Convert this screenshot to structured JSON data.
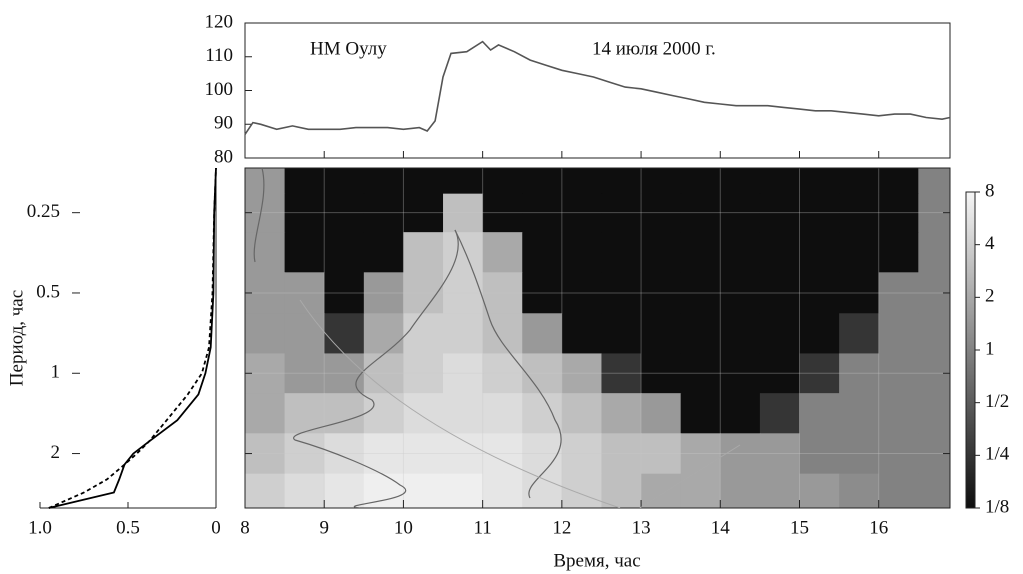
{
  "chart_data": [
    {
      "type": "line",
      "title": "НМ Оулу",
      "subtitle": "14 июля 2000 г.",
      "x": [
        8.0,
        8.1,
        8.2,
        8.4,
        8.6,
        8.8,
        9.0,
        9.2,
        9.4,
        9.6,
        9.8,
        10.0,
        10.2,
        10.3,
        10.4,
        10.5,
        10.6,
        10.8,
        11.0,
        11.1,
        11.2,
        11.4,
        11.6,
        11.8,
        12.0,
        12.2,
        12.4,
        12.6,
        12.8,
        13.0,
        13.2,
        13.4,
        13.6,
        13.8,
        14.0,
        14.2,
        14.4,
        14.6,
        14.8,
        15.0,
        15.2,
        15.4,
        15.6,
        15.8,
        16.0,
        16.2,
        16.4,
        16.6,
        16.8,
        16.9
      ],
      "series": [
        {
          "color": "#555555",
          "values": [
            87,
            90.5,
            90,
            88.5,
            89.5,
            88.5,
            88.5,
            88.5,
            89,
            89,
            89,
            88.5,
            89,
            88,
            91,
            104,
            111,
            111.5,
            114.5,
            112,
            113.5,
            111.5,
            109,
            107.5,
            106,
            105,
            104,
            102.5,
            101,
            100.5,
            99.5,
            98.5,
            97.5,
            96.5,
            96,
            95.5,
            95.5,
            95.5,
            95,
            94.5,
            94,
            94,
            93.5,
            93,
            92.5,
            93,
            93,
            92,
            91.5,
            92
          ]
        }
      ],
      "xlim": [
        8,
        16.9
      ],
      "ylim": [
        80,
        120
      ],
      "yticks": [
        80,
        90,
        100,
        110,
        120
      ]
    },
    {
      "type": "line",
      "orientation": "horizontal",
      "y_label": "Период, час",
      "y": [
        3.2,
        2.8,
        2.5,
        2.2,
        2.0,
        1.8,
        1.5,
        1.2,
        1.0,
        0.8,
        0.5,
        0.25,
        0.17
      ],
      "series": [
        {
          "color": "#000000",
          "style": "solid",
          "values": [
            0.95,
            0.58,
            0.55,
            0.52,
            0.47,
            0.38,
            0.22,
            0.1,
            0.06,
            0.03,
            0.015,
            0.01,
            0
          ]
        },
        {
          "color": "#000000",
          "style": "dashed",
          "values": [
            0.95,
            0.75,
            0.62,
            0.52,
            0.45,
            0.38,
            0.28,
            0.16,
            0.08,
            0.04,
            0.02,
            0.01,
            0
          ]
        }
      ],
      "xlim": [
        1.0,
        0
      ],
      "xticks": [
        {
          "value": 1.0,
          "label": "1.0"
        },
        0.5,
        0
      ],
      "ylim": [
        0.17,
        3.2
      ],
      "y_log": true,
      "y_inverted": true,
      "yticks": [
        0.25,
        0.5,
        1,
        2
      ]
    },
    {
      "type": "heatmap",
      "x_label": "Время, час",
      "x": [
        8.25,
        8.75,
        9.25,
        9.75,
        10.25,
        10.75,
        11.25,
        11.75,
        12.25,
        12.75,
        13.25,
        13.75,
        14.25,
        14.75,
        15.25,
        15.75,
        16.25,
        16.75
      ],
      "y": [
        0.18,
        0.25,
        0.35,
        0.5,
        0.71,
        1,
        1.41,
        2,
        2.83
      ],
      "z": [
        [
          1.5,
          0.125,
          0.125,
          0.125,
          0.125,
          0.125,
          0.125,
          0.125,
          0.125,
          0.125,
          0.125,
          0.125,
          0.125,
          0.125,
          0.125,
          0.125,
          0.125,
          1
        ],
        [
          1.5,
          0.125,
          0.125,
          0.125,
          0.125,
          3,
          0.125,
          0.125,
          0.125,
          0.125,
          0.125,
          0.125,
          0.125,
          0.125,
          0.125,
          0.125,
          0.125,
          1
        ],
        [
          1.5,
          0.125,
          0.125,
          0.125,
          3,
          4,
          2,
          0.125,
          0.125,
          0.125,
          0.125,
          0.125,
          0.125,
          0.125,
          0.125,
          0.125,
          0.125,
          1
        ],
        [
          1.5,
          1.5,
          0.125,
          1.5,
          3,
          4,
          3,
          0.125,
          0.125,
          0.125,
          0.125,
          0.125,
          0.125,
          0.125,
          0.125,
          0.125,
          1,
          1
        ],
        [
          1.5,
          1.5,
          0.25,
          2,
          4,
          4,
          3,
          1.5,
          0.125,
          0.125,
          0.125,
          0.125,
          0.125,
          0.125,
          0.125,
          0.25,
          1,
          1
        ],
        [
          2,
          1.5,
          1.5,
          3,
          4,
          5,
          4,
          3,
          2,
          0.25,
          0.125,
          0.125,
          0.125,
          0.125,
          0.25,
          1,
          1,
          1
        ],
        [
          2,
          3,
          3,
          4,
          5,
          5,
          5,
          4,
          3,
          2,
          1.5,
          0.125,
          0.125,
          0.25,
          1,
          1,
          1,
          1
        ],
        [
          3,
          4,
          5,
          6,
          6,
          6,
          6,
          5,
          4,
          3,
          3,
          2,
          1.5,
          1.5,
          1,
          1,
          1,
          1
        ],
        [
          4,
          5,
          6,
          7,
          7,
          7,
          6,
          5,
          4,
          3,
          2,
          2,
          1.5,
          1.5,
          1.5,
          1.2,
          1,
          1
        ]
      ],
      "xlim": [
        8,
        16.9
      ],
      "xticks": [
        8,
        9,
        10,
        11,
        12,
        13,
        14,
        15,
        16
      ],
      "ylim": [
        0.17,
        3.2
      ],
      "y_log": true,
      "y_inverted": true,
      "yticks": [
        0.25,
        0.5,
        1,
        2
      ],
      "grid": true,
      "zlim": [
        0.125,
        8
      ],
      "colormap": [
        "#0e0e0e",
        "#f6f6f6"
      ],
      "colorbar_ticks": [
        {
          "value": 8,
          "label": "8"
        },
        {
          "value": 4,
          "label": "4"
        },
        {
          "value": 2,
          "label": "2"
        },
        {
          "value": 1,
          "label": "1"
        },
        {
          "value": 0.5,
          "label": "1/2"
        },
        {
          "value": 0.25,
          "label": "1/4"
        },
        {
          "value": 0.125,
          "label": "1/8"
        }
      ]
    }
  ]
}
